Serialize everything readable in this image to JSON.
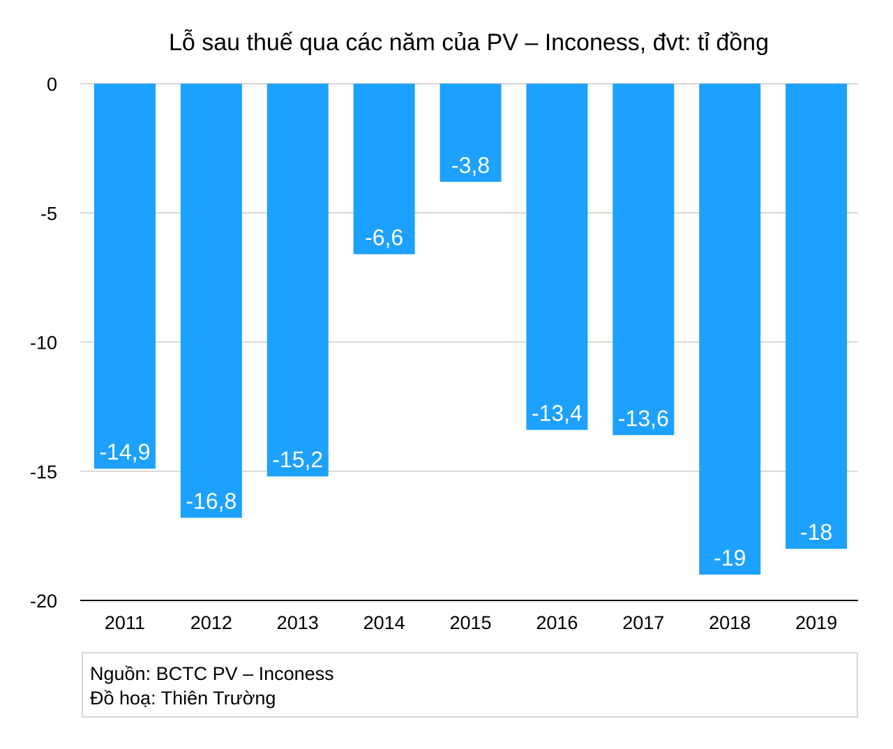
{
  "chart_data": {
    "type": "bar",
    "title": "Lỗ sau thuế qua các năm của PV – Inconess, đvt: tỉ đồng",
    "categories": [
      "2011",
      "2012",
      "2013",
      "2014",
      "2015",
      "2016",
      "2017",
      "2018",
      "2019"
    ],
    "values": [
      -14.9,
      -16.8,
      -15.2,
      -6.6,
      -3.8,
      -13.4,
      -13.6,
      -19,
      -18
    ],
    "value_labels": [
      "-14,9",
      "-16,8",
      "-15,2",
      "-6,6",
      "-3,8",
      "-13,4",
      "-13,6",
      "-19",
      "-18"
    ],
    "ylim": [
      -20,
      0
    ],
    "yticks": [
      0,
      -5,
      -10,
      -15,
      -20
    ],
    "ytick_labels": [
      "0",
      "-5",
      "-10",
      "-15",
      "-20"
    ],
    "grid": true,
    "legend": "none",
    "colors": {
      "bar": "#1da1fe",
      "grid": "#cccccc",
      "axis": "#000000",
      "label": "#ffffff"
    }
  },
  "footer": {
    "source": "Nguồn: BCTC PV – Inconess",
    "credit": "Đồ hoạ: Thiên Trường"
  }
}
